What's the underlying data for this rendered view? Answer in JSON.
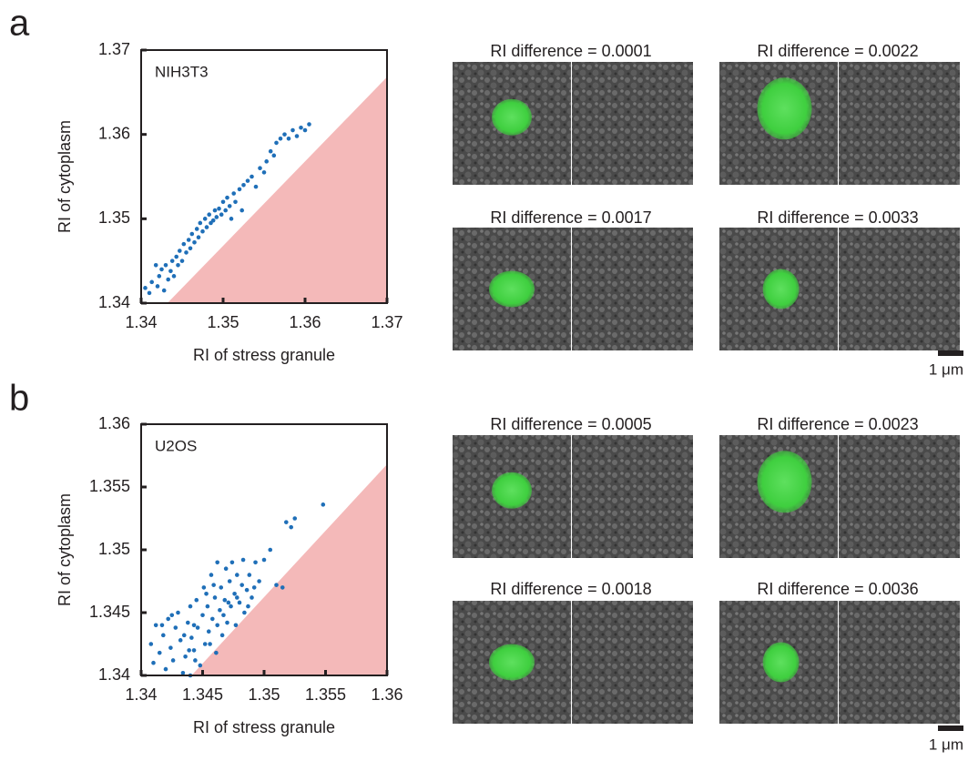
{
  "chart_data": [
    {
      "type": "scatter",
      "annotation": "NIH3T3",
      "x_label": "RI of stress granule",
      "y_label": "RI of cytoplasm",
      "xlim": [
        1.34,
        1.37
      ],
      "ylim": [
        1.34,
        1.37
      ],
      "xticks": [
        1.34,
        1.35,
        1.36,
        1.37
      ],
      "yticks": [
        1.34,
        1.35,
        1.36,
        1.37
      ],
      "grid": false,
      "color": "#1f6fb8",
      "shaded_region": {
        "x": [
          1.3432,
          1.37,
          1.37
        ],
        "y": [
          1.34,
          1.3668,
          1.34
        ],
        "color": "#f4b9b9"
      },
      "x": [
        1.3405,
        1.341,
        1.3413,
        1.3418,
        1.342,
        1.3422,
        1.3425,
        1.3428,
        1.343,
        1.3433,
        1.3436,
        1.3438,
        1.344,
        1.3443,
        1.3445,
        1.3447,
        1.345,
        1.3452,
        1.3455,
        1.3458,
        1.346,
        1.3462,
        1.3465,
        1.3468,
        1.347,
        1.3472,
        1.3475,
        1.3478,
        1.348,
        1.3483,
        1.3485,
        1.3488,
        1.349,
        1.3492,
        1.3495,
        1.3498,
        1.35,
        1.3503,
        1.3505,
        1.3508,
        1.351,
        1.3513,
        1.3515,
        1.352,
        1.3523,
        1.3525,
        1.353,
        1.3535,
        1.354,
        1.3545,
        1.355,
        1.3553,
        1.3558,
        1.3562,
        1.3565,
        1.357,
        1.3575,
        1.358,
        1.3585,
        1.359,
        1.3595,
        1.36,
        1.3605
      ],
      "values": [
        1.3418,
        1.3412,
        1.3425,
        1.3445,
        1.342,
        1.3432,
        1.344,
        1.3415,
        1.3445,
        1.3428,
        1.3438,
        1.345,
        1.3432,
        1.3455,
        1.3445,
        1.3462,
        1.345,
        1.347,
        1.346,
        1.3475,
        1.3465,
        1.3482,
        1.3472,
        1.3488,
        1.3478,
        1.3495,
        1.3485,
        1.35,
        1.349,
        1.3505,
        1.3495,
        1.3498,
        1.351,
        1.3502,
        1.3512,
        1.3505,
        1.352,
        1.351,
        1.3525,
        1.3515,
        1.35,
        1.353,
        1.352,
        1.3535,
        1.351,
        1.354,
        1.3545,
        1.355,
        1.3538,
        1.356,
        1.3555,
        1.3568,
        1.358,
        1.3575,
        1.359,
        1.3595,
        1.36,
        1.3595,
        1.3605,
        1.3598,
        1.3608,
        1.3605,
        1.3612
      ]
    },
    {
      "type": "scatter",
      "annotation": "U2OS",
      "x_label": "RI of stress granule",
      "y_label": "RI of cytoplasm",
      "xlim": [
        1.34,
        1.36
      ],
      "ylim": [
        1.34,
        1.36
      ],
      "xticks": [
        1.34,
        1.345,
        1.35,
        1.355,
        1.36
      ],
      "yticks": [
        1.34,
        1.345,
        1.35,
        1.355,
        1.36
      ],
      "grid": false,
      "color": "#1f6fb8",
      "shaded_region": {
        "x": [
          1.3441,
          1.36,
          1.36
        ],
        "y": [
          1.34,
          1.3568,
          1.34
        ],
        "color": "#f4b9b9"
      },
      "x": [
        1.3408,
        1.341,
        1.3412,
        1.3415,
        1.3418,
        1.342,
        1.3422,
        1.3424,
        1.3426,
        1.3428,
        1.343,
        1.3432,
        1.3434,
        1.3436,
        1.3438,
        1.344,
        1.3441,
        1.3443,
        1.3445,
        1.3446,
        1.3448,
        1.345,
        1.3451,
        1.3452,
        1.3454,
        1.3455,
        1.3457,
        1.3458,
        1.346,
        1.3461,
        1.3462,
        1.3464,
        1.3465,
        1.3466,
        1.3468,
        1.3469,
        1.347,
        1.3472,
        1.3473,
        1.3474,
        1.3476,
        1.3477,
        1.3478,
        1.348,
        1.3482,
        1.3484,
        1.3486,
        1.3488,
        1.349,
        1.3493,
        1.3496,
        1.35,
        1.351,
        1.3515,
        1.3505,
        1.3518,
        1.3522,
        1.3525,
        1.3548,
        1.344,
        1.3435,
        1.3425,
        1.3417,
        1.3444,
        1.3456,
        1.3467,
        1.3478,
        1.3487,
        1.3462,
        1.3453,
        1.3439,
        1.3471,
        1.3483,
        1.3492,
        1.3459,
        1.3443
      ],
      "values": [
        1.3425,
        1.341,
        1.344,
        1.3418,
        1.3432,
        1.3405,
        1.3445,
        1.3422,
        1.3412,
        1.3438,
        1.345,
        1.3428,
        1.3402,
        1.3415,
        1.3442,
        1.3455,
        1.343,
        1.342,
        1.346,
        1.3438,
        1.3408,
        1.3448,
        1.347,
        1.3425,
        1.3455,
        1.3435,
        1.348,
        1.3445,
        1.3462,
        1.3418,
        1.349,
        1.3452,
        1.347,
        1.3432,
        1.346,
        1.3485,
        1.3442,
        1.3475,
        1.3455,
        1.349,
        1.3465,
        1.344,
        1.348,
        1.3458,
        1.3472,
        1.345,
        1.3468,
        1.348,
        1.3462,
        1.349,
        1.3475,
        1.3492,
        1.3472,
        1.347,
        1.35,
        1.3522,
        1.3518,
        1.3525,
        1.3536,
        1.34,
        1.3432,
        1.3448,
        1.344,
        1.3412,
        1.3425,
        1.3448,
        1.3462,
        1.3455,
        1.344,
        1.3465,
        1.342,
        1.3458,
        1.3492,
        1.347,
        1.3472,
        1.344
      ]
    }
  ],
  "panels": [
    {
      "label": "a",
      "images": [
        {
          "title": "RI difference = 0.0001"
        },
        {
          "title": "RI difference = 0.0022"
        },
        {
          "title": "RI difference = 0.0017"
        },
        {
          "title": "RI difference = 0.0033"
        }
      ],
      "scale_bar": "1 μm"
    },
    {
      "label": "b",
      "images": [
        {
          "title": "RI difference = 0.0005"
        },
        {
          "title": "RI difference = 0.0023"
        },
        {
          "title": "RI difference = 0.0018"
        },
        {
          "title": "RI difference = 0.0036"
        }
      ],
      "scale_bar": "1 μm"
    }
  ]
}
